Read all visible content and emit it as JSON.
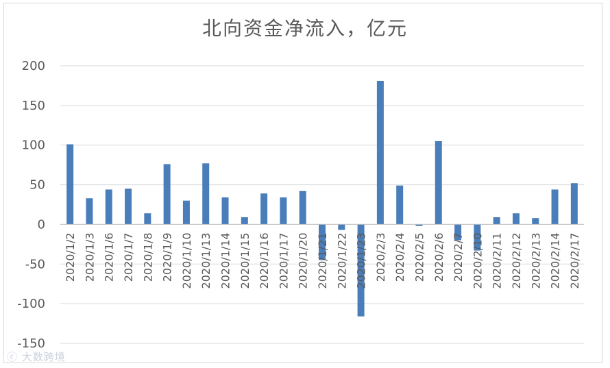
{
  "chart_data": {
    "type": "bar",
    "title": "北向资金净流入，亿元",
    "xlabel": "",
    "ylabel": "",
    "ylim": [
      -150,
      200
    ],
    "yticks": [
      "200",
      "150",
      "100",
      "50",
      "0",
      "-50",
      "-100",
      "-150"
    ],
    "grid": true,
    "bar_color": "#4a7ebb",
    "categories": [
      "2020/1/2",
      "2020/1/3",
      "2020/1/6",
      "2020/1/7",
      "2020/1/8",
      "2020/1/9",
      "2020/1/10",
      "2020/1/13",
      "2020/1/14",
      "2020/1/15",
      "2020/1/16",
      "2020/1/17",
      "2020/1/20",
      "2020/1/21",
      "2020/1/22",
      "2020/1/23",
      "2020/2/3",
      "2020/2/4",
      "2020/2/5",
      "2020/2/6",
      "2020/2/7",
      "2020/2/10",
      "2020/2/11",
      "2020/2/12",
      "2020/2/13",
      "2020/2/14",
      "2020/2/17"
    ],
    "values": [
      101,
      33,
      44,
      45,
      14,
      76,
      30,
      77,
      34,
      9,
      39,
      34,
      42,
      -45,
      -7,
      -116,
      181,
      49,
      -2,
      105,
      -20,
      -33,
      9,
      14,
      8,
      44,
      52
    ]
  },
  "watermark": "大数跨境"
}
